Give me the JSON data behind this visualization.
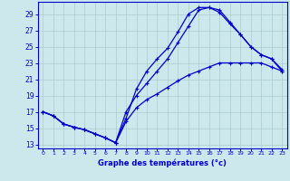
{
  "xlabel": "Graphe des températures (°c)",
  "xlim": [
    -0.5,
    23.5
  ],
  "ylim": [
    12.5,
    30.5
  ],
  "yticks": [
    13,
    15,
    17,
    19,
    21,
    23,
    25,
    27,
    29
  ],
  "xticks": [
    0,
    1,
    2,
    3,
    4,
    5,
    6,
    7,
    8,
    9,
    10,
    11,
    12,
    13,
    14,
    15,
    16,
    17,
    18,
    19,
    20,
    21,
    22,
    23
  ],
  "background_color": "#cce8ec",
  "grid_color": "#aacccc",
  "line_color": "#0000cc",
  "curve_upper": {
    "x": [
      0,
      1,
      2,
      3,
      4,
      5,
      6,
      7,
      8,
      9,
      10,
      11,
      12,
      13,
      14,
      15,
      16,
      17,
      18,
      19,
      20,
      21,
      22,
      23
    ],
    "y": [
      17,
      16.5,
      15.5,
      15.1,
      14.8,
      14.3,
      13.8,
      13.2,
      16.2,
      19.8,
      22.0,
      23.5,
      24.8,
      26.8,
      29.0,
      29.8,
      29.8,
      29.2,
      27.8,
      26.5,
      25.0,
      24.0,
      23.5,
      22.0
    ]
  },
  "curve_mid": {
    "x": [
      0,
      1,
      2,
      3,
      4,
      5,
      6,
      7,
      8,
      9,
      10,
      11,
      12,
      13,
      14,
      15,
      16,
      17,
      18,
      19,
      20,
      21,
      22,
      23
    ],
    "y": [
      17,
      16.5,
      15.5,
      15.1,
      14.8,
      14.3,
      13.8,
      13.2,
      15.8,
      17.5,
      18.5,
      19.2,
      20.0,
      20.8,
      21.5,
      22.0,
      22.5,
      23.0,
      23.0,
      23.0,
      23.0,
      23.0,
      22.5,
      22.0
    ]
  },
  "curve_lower": {
    "x": [
      0,
      1,
      2,
      3,
      4,
      5,
      6,
      7,
      8,
      9,
      10,
      11,
      12,
      13,
      14,
      15,
      16,
      17,
      18,
      19,
      20,
      21,
      22,
      23
    ],
    "y": [
      17,
      16.5,
      15.5,
      15.1,
      14.8,
      14.3,
      13.8,
      13.2,
      17.0,
      19.0,
      20.5,
      22.0,
      23.5,
      25.5,
      27.5,
      29.5,
      29.8,
      29.5,
      28.0,
      26.5,
      25.0,
      24.0,
      23.5,
      22.2
    ]
  }
}
